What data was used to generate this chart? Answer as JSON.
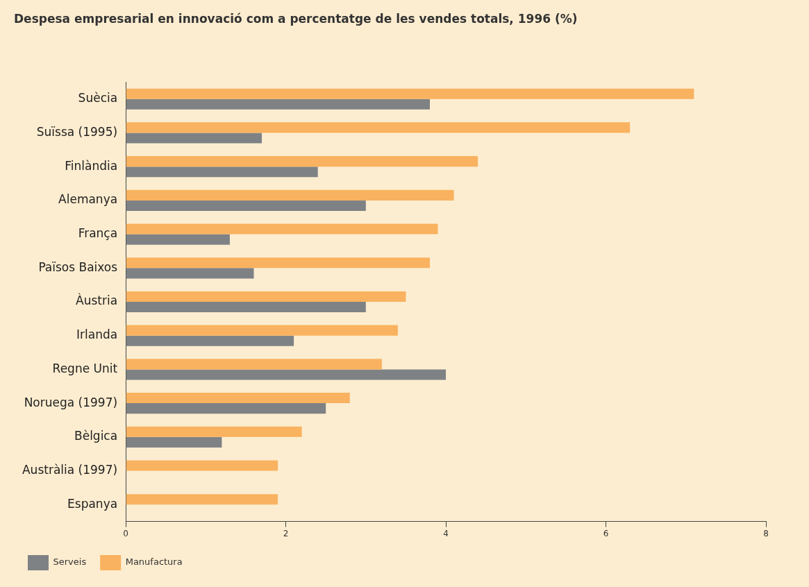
{
  "chart_data": {
    "type": "bar",
    "orientation": "horizontal",
    "title": "Despesa empresarial en innovació com a percentatge de les vendes totals, 1996 (%)",
    "categories": [
      "Suècia",
      "Suïssa (1995)",
      "Finlàndia",
      "Alemanya",
      "França",
      "Països Baixos",
      "Àustria",
      "Irlanda",
      "Regne Unit",
      "Noruega (1997)",
      "Bèlgica",
      "Austràlia (1997)",
      "Espanya"
    ],
    "series": [
      {
        "name": "Serveis",
        "color": "#7f8285",
        "values": [
          3.8,
          1.7,
          2.4,
          3.0,
          1.3,
          1.6,
          3.0,
          2.1,
          4.0,
          2.5,
          1.2,
          null,
          null
        ]
      },
      {
        "name": "Manufactura",
        "color": "#f9b25f",
        "values": [
          7.1,
          6.3,
          4.4,
          4.1,
          3.9,
          3.8,
          3.5,
          3.4,
          3.2,
          2.8,
          2.2,
          1.9,
          1.9
        ]
      }
    ],
    "xlim": [
      0,
      8
    ],
    "xticks": [
      0,
      2,
      4,
      6,
      8
    ],
    "legend": "bottom left"
  }
}
